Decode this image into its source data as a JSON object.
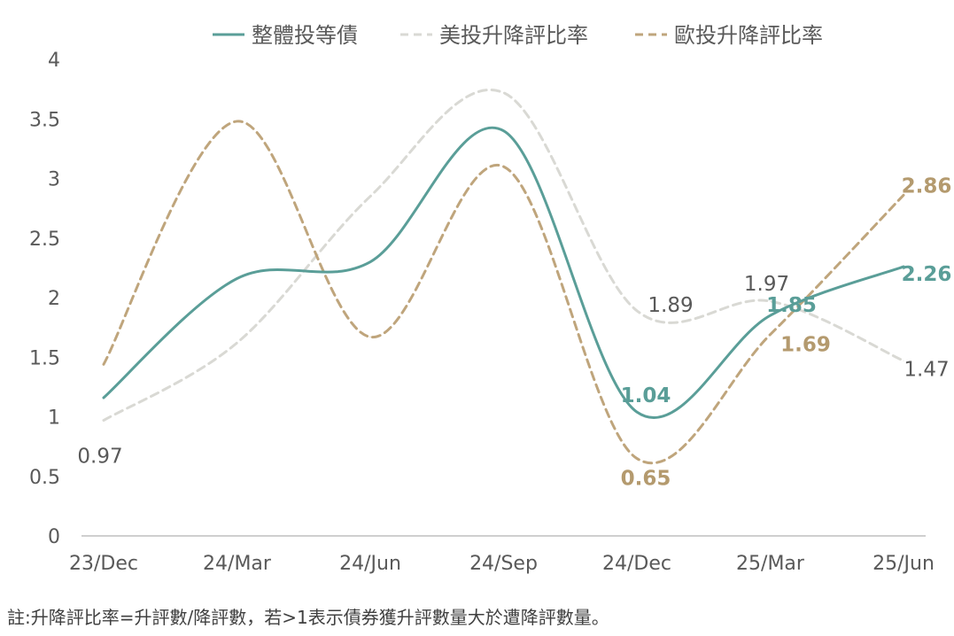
{
  "chart_data": {
    "type": "line",
    "categories": [
      "23/Dec",
      "24/Mar",
      "24/Jun",
      "24/Sep",
      "24/Dec",
      "25/Mar",
      "25/Jun"
    ],
    "ylim": [
      0,
      4
    ],
    "yticks": [
      "0",
      "0.5",
      "1",
      "1.5",
      "2",
      "2.5",
      "3",
      "3.5",
      "4"
    ],
    "grid": false,
    "legend_position": "top",
    "series": [
      {
        "name": "整體投等債",
        "values": [
          1.16,
          2.16,
          2.3,
          3.4,
          1.04,
          1.85,
          2.26
        ],
        "labels": [
          "",
          "",
          "",
          "",
          "1.04",
          "1.85",
          "2.26"
        ],
        "color": "#5a9e98",
        "style": "solid",
        "label_color": "#5a9e98"
      },
      {
        "name": "美投升降評比率",
        "values": [
          0.97,
          1.62,
          2.85,
          3.72,
          1.89,
          1.97,
          1.47
        ],
        "labels": [
          "0.97",
          "",
          "",
          "",
          "1.89",
          "1.97",
          "1.47"
        ],
        "color": "#d9d9d4",
        "style": "dashed",
        "label_color": "#595959"
      },
      {
        "name": "歐投升降評比率",
        "values": [
          1.44,
          3.48,
          1.67,
          3.1,
          0.65,
          1.69,
          2.86
        ],
        "labels": [
          "",
          "",
          "",
          "",
          "0.65",
          "1.69",
          "2.86"
        ],
        "color": "#bfa57c",
        "style": "dashed",
        "label_color": "#b49a6e"
      }
    ]
  },
  "footnote": "註:升降評比率=升評數/降評數，若>1表示債券獲升評數量大於遭降評數量。"
}
